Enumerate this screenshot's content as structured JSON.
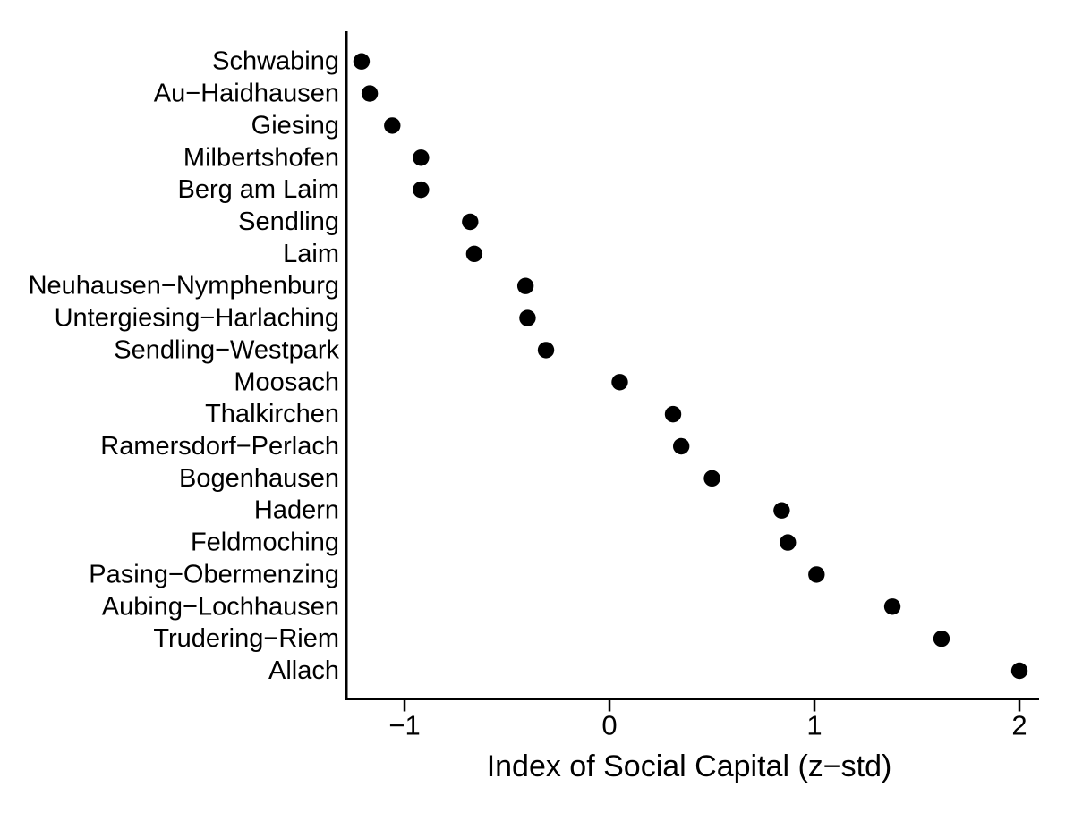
{
  "chart_data": {
    "type": "scatter",
    "subtype": "horizontal-dot-plot",
    "title": "",
    "xlabel": "Index of Social Capital (z−std)",
    "ylabel": "",
    "xlim": [
      -1.284,
      2.096
    ],
    "x_ticks": [
      {
        "label": "−1",
        "value": -1
      },
      {
        "label": "0",
        "value": 0
      },
      {
        "label": "1",
        "value": 1
      },
      {
        "label": "2",
        "value": 2
      }
    ],
    "grid": false,
    "legend": false,
    "background_color": "#ffffff",
    "marker_color": "#000000",
    "axis_color": "#000000",
    "categories": [
      "Schwabing",
      "Au−Haidhausen",
      "Giesing",
      "Milbertshofen",
      "Berg am Laim",
      "Sendling",
      "Laim",
      "Neuhausen−Nymphenburg",
      "Untergiesing−Harlaching",
      "Sendling−Westpark",
      "Moosach",
      "Thalkirchen",
      "Ramersdorf−Perlach",
      "Bogenhausen",
      "Hadern",
      "Feldmoching",
      "Pasing−Obermenzing",
      "Aubing−Lochhausen",
      "Trudering−Riem",
      "Allach"
    ],
    "values": [
      -1.21,
      -1.17,
      -1.06,
      -0.92,
      -0.92,
      -0.68,
      -0.66,
      -0.41,
      -0.4,
      -0.31,
      0.05,
      0.31,
      0.35,
      0.5,
      0.84,
      0.87,
      1.01,
      1.38,
      1.62,
      2.0
    ]
  }
}
